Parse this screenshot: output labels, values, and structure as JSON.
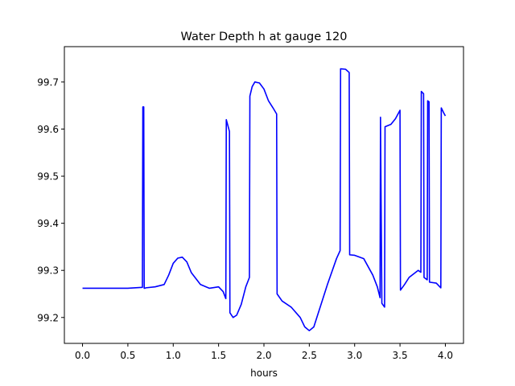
{
  "chart_data": {
    "type": "line",
    "title": "Water Depth h at gauge 120",
    "xlabel": "hours",
    "ylabel": "",
    "xlim": [
      -0.2,
      4.2
    ],
    "ylim": [
      99.145,
      99.775
    ],
    "xticks": [
      0.0,
      0.5,
      1.0,
      1.5,
      2.0,
      2.5,
      3.0,
      3.5,
      4.0
    ],
    "xtick_labels": [
      "0.0",
      "0.5",
      "1.0",
      "1.5",
      "2.0",
      "2.5",
      "3.0",
      "3.5",
      "4.0"
    ],
    "yticks": [
      99.2,
      99.3,
      99.4,
      99.5,
      99.6,
      99.7
    ],
    "ytick_labels": [
      "99.2",
      "99.3",
      "99.4",
      "99.5",
      "99.6",
      "99.7"
    ],
    "grid": false,
    "legend": "none",
    "series": [
      {
        "color": "#0000ff",
        "x": [
          0.0,
          0.3,
          0.5,
          0.66,
          0.665,
          0.675,
          0.68,
          0.685,
          0.7,
          0.8,
          0.9,
          0.95,
          1.0,
          1.05,
          1.1,
          1.15,
          1.2,
          1.3,
          1.4,
          1.5,
          1.55,
          1.58,
          1.585,
          1.62,
          1.625,
          1.66,
          1.7,
          1.75,
          1.8,
          1.84,
          1.845,
          1.87,
          1.9,
          1.95,
          2.0,
          2.05,
          2.1,
          2.14,
          2.145,
          2.2,
          2.3,
          2.4,
          2.45,
          2.5,
          2.55,
          2.6,
          2.7,
          2.8,
          2.84,
          2.845,
          2.9,
          2.94,
          2.945,
          3.0,
          3.1,
          3.2,
          3.25,
          3.28,
          3.285,
          3.3,
          3.33,
          3.335,
          3.4,
          3.45,
          3.5,
          3.505,
          3.55,
          3.6,
          3.7,
          3.73,
          3.735,
          3.76,
          3.765,
          3.8,
          3.805,
          3.82,
          3.825,
          3.9,
          3.95,
          3.955,
          3.98,
          4.0
        ],
        "y": [
          99.262,
          99.262,
          99.262,
          99.264,
          99.647,
          99.647,
          99.262,
          99.262,
          99.263,
          99.265,
          99.27,
          99.29,
          99.315,
          99.326,
          99.328,
          99.318,
          99.295,
          99.27,
          99.262,
          99.265,
          99.255,
          99.24,
          99.62,
          99.595,
          99.21,
          99.2,
          99.205,
          99.228,
          99.265,
          99.285,
          99.67,
          99.69,
          99.7,
          99.698,
          99.685,
          99.66,
          99.645,
          99.632,
          99.25,
          99.235,
          99.222,
          99.2,
          99.18,
          99.172,
          99.18,
          99.21,
          99.27,
          99.325,
          99.342,
          99.728,
          99.727,
          99.72,
          99.333,
          99.332,
          99.325,
          99.29,
          99.265,
          99.242,
          99.625,
          99.23,
          99.222,
          99.605,
          99.61,
          99.622,
          99.64,
          99.258,
          99.27,
          99.285,
          99.3,
          99.296,
          99.68,
          99.675,
          99.285,
          99.28,
          99.66,
          99.658,
          99.275,
          99.273,
          99.263,
          99.645,
          99.635,
          99.628
        ]
      }
    ]
  }
}
